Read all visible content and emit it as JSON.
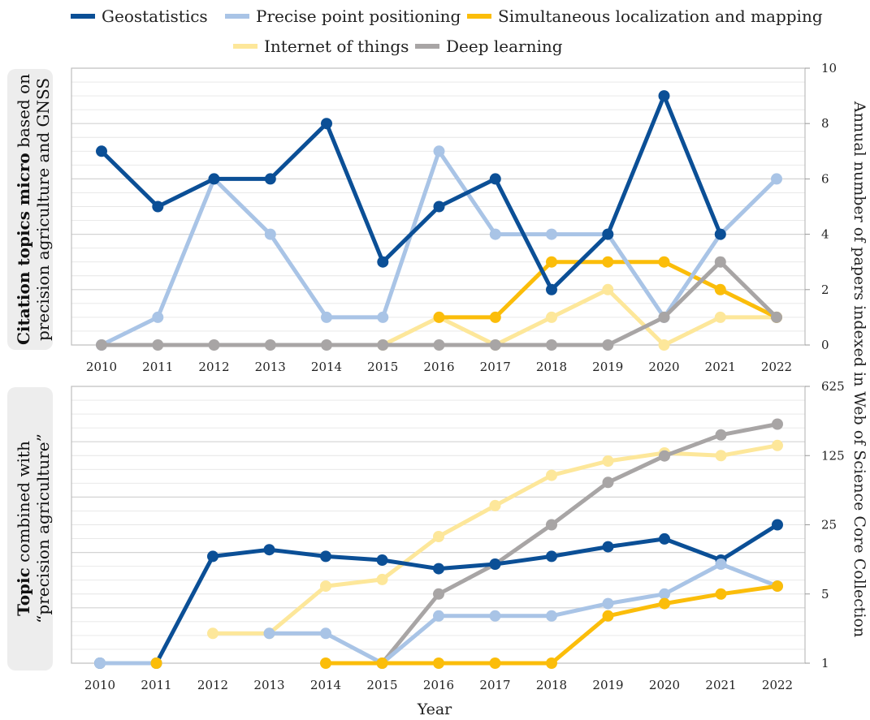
{
  "colors": {
    "Geostatistics": "#0B4F96",
    "Precise point positioning": "#A9C4E6",
    "Simultaneous localization and mapping": "#FBBD0A",
    "Internet of things": "#FDE79A",
    "Deep learning": "#A8A5A5",
    "panel_label_bg": "#EDEDED",
    "grid": "#E6E6E6"
  },
  "legend": {
    "items": [
      "Geostatistics",
      "Precise point positioning",
      "Simultaneous localization and mapping",
      "Internet of things",
      "Deep learning"
    ]
  },
  "axes": {
    "right_ylabel": "Annual number of papers indexed in Web of Science Core Collection",
    "xlabel": "Year"
  },
  "panels": {
    "top": {
      "label_bold": "Citation topics micro",
      "label_rest_line1": " based on",
      "label_line2": "precision agriculture and GNSS"
    },
    "bottom": {
      "label_bold": "Topic",
      "label_rest_line1": " combined with",
      "label_line2": "“precision agriculture”"
    }
  },
  "chart_data": [
    {
      "type": "line",
      "panel": "top",
      "x": [
        2010,
        2011,
        2012,
        2013,
        2014,
        2015,
        2016,
        2017,
        2018,
        2019,
        2020,
        2021,
        2022
      ],
      "ylim": [
        0,
        10
      ],
      "yticks": [
        0,
        2,
        4,
        6,
        8,
        10
      ],
      "y_axis_side": "right",
      "grid": true,
      "series": [
        {
          "name": "Internet of things",
          "values": [
            null,
            null,
            null,
            null,
            null,
            0,
            1,
            0,
            1,
            2,
            0,
            1,
            1
          ]
        },
        {
          "name": "Simultaneous localization and mapping",
          "values": [
            null,
            null,
            null,
            null,
            null,
            null,
            1,
            1,
            3,
            3,
            3,
            2,
            1
          ]
        },
        {
          "name": "Precise point positioning",
          "values": [
            0,
            1,
            6,
            4,
            1,
            1,
            7,
            4,
            4,
            4,
            1,
            4,
            6
          ]
        },
        {
          "name": "Geostatistics",
          "values": [
            7,
            5,
            6,
            6,
            8,
            3,
            5,
            6,
            2,
            4,
            9,
            4,
            null
          ]
        },
        {
          "name": "Deep learning",
          "values": [
            0,
            0,
            0,
            0,
            0,
            0,
            0,
            0,
            0,
            0,
            1,
            3,
            1
          ]
        }
      ]
    },
    {
      "type": "line",
      "panel": "bottom",
      "x": [
        2010,
        2011,
        2012,
        2013,
        2014,
        2015,
        2016,
        2017,
        2018,
        2019,
        2020,
        2021,
        2022
      ],
      "ylim": [
        1,
        625
      ],
      "yscale": "log",
      "yticks": [
        1,
        5,
        25,
        125,
        625
      ],
      "y_axis_side": "right",
      "grid": true,
      "series": [
        {
          "name": "Internet of things",
          "values": [
            null,
            null,
            2,
            2,
            6,
            7,
            19,
            39,
            79,
            110,
            133,
            125,
            158
          ]
        },
        {
          "name": "Deep learning",
          "values": [
            null,
            null,
            null,
            null,
            null,
            1,
            5,
            10,
            25,
            67,
            124,
            202,
            260
          ]
        },
        {
          "name": "Geostatistics",
          "values": [
            1,
            1,
            12,
            14,
            12,
            11,
            9,
            10,
            12,
            15,
            18,
            11,
            25
          ]
        },
        {
          "name": "Precise point positioning",
          "values": [
            1,
            1,
            null,
            2,
            2,
            1,
            3,
            3,
            3,
            4,
            5,
            10,
            6
          ]
        },
        {
          "name": "Simultaneous localization and mapping",
          "values": [
            null,
            1,
            null,
            null,
            1,
            1,
            1,
            1,
            1,
            3,
            4,
            5,
            6
          ]
        }
      ]
    }
  ]
}
